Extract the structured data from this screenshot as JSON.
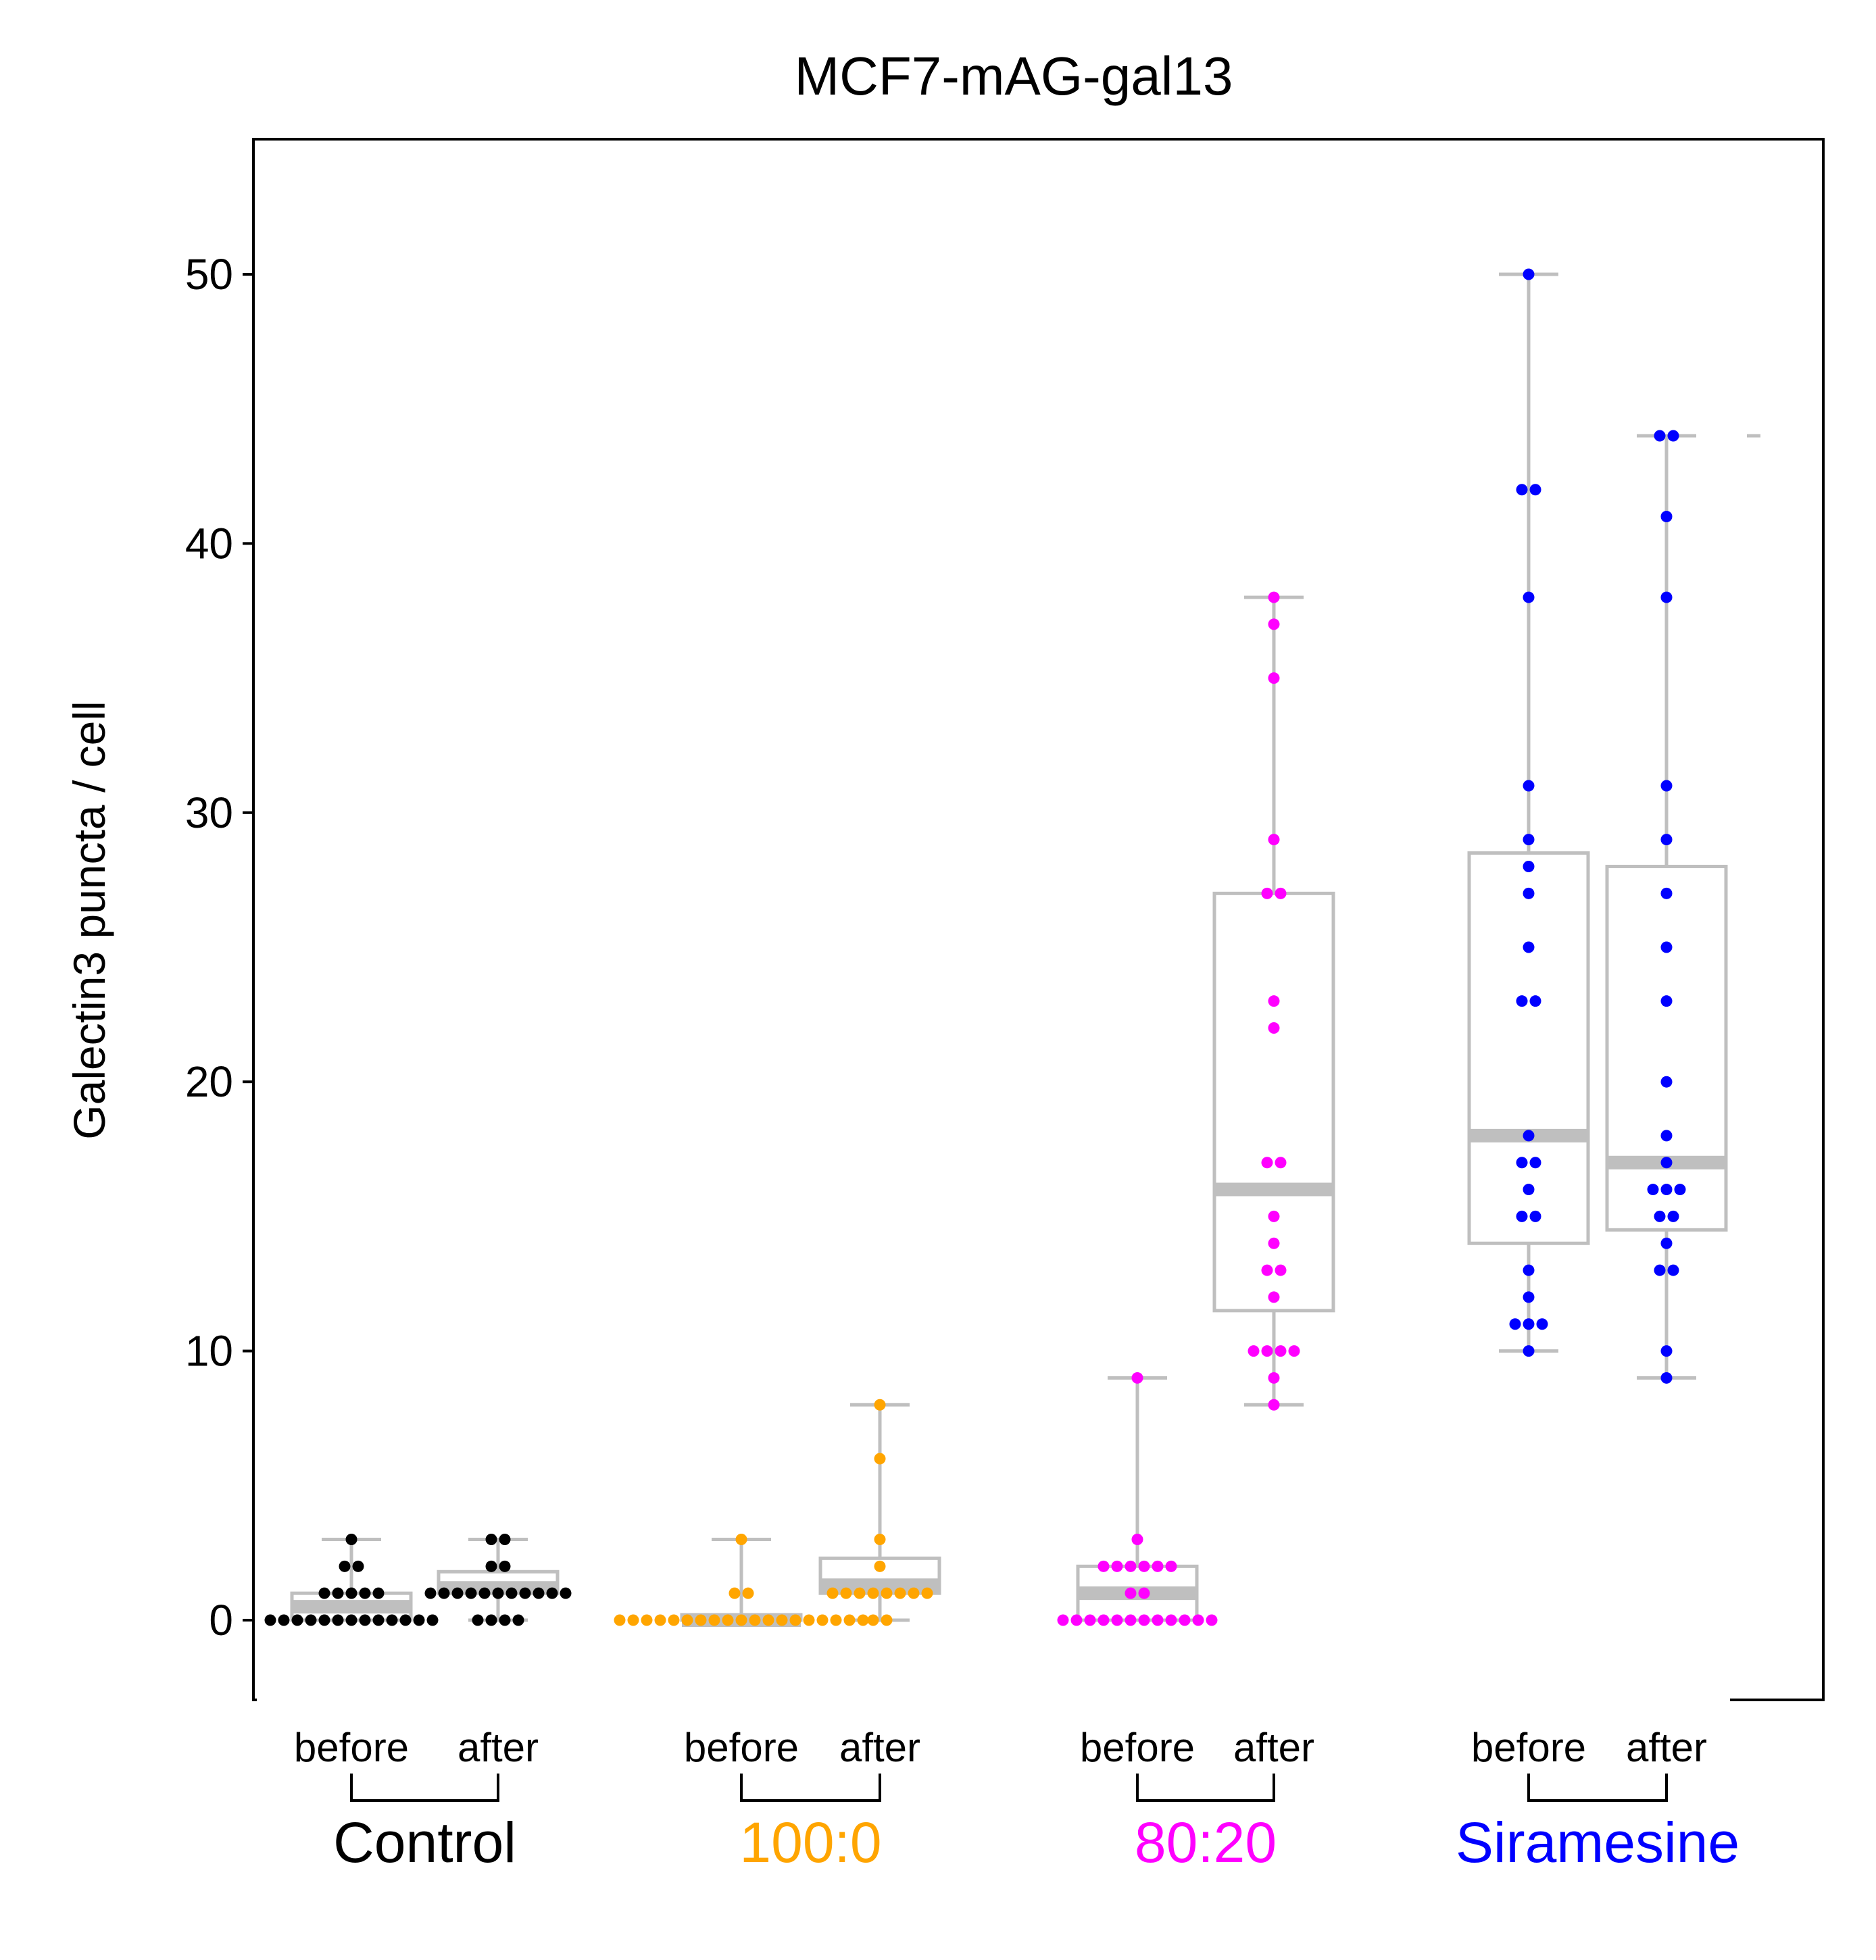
{
  "chart_data": {
    "type": "box-swarm",
    "title": "MCF7-mAG-gal13",
    "ylabel": "Galectin3 puncta / cell",
    "ylim": [
      -3,
      55
    ],
    "yticks": [
      0,
      10,
      20,
      30,
      40,
      50
    ],
    "grid": false,
    "subgroup_labels": [
      "before",
      "after"
    ],
    "groups": [
      {
        "name": "Control",
        "color": "#000000",
        "before": [
          0,
          0,
          0,
          0,
          0,
          0,
          0,
          0,
          0,
          0,
          0,
          0,
          0,
          1,
          1,
          1,
          1,
          1,
          2,
          2,
          3
        ],
        "after": [
          0,
          0,
          0,
          0,
          1,
          1,
          1,
          1,
          1,
          1,
          1,
          1,
          1,
          1,
          1,
          2,
          2,
          3,
          3
        ]
      },
      {
        "name": "100:0",
        "color": "#ffa500",
        "before": [
          0,
          0,
          0,
          0,
          0,
          0,
          0,
          0,
          0,
          0,
          0,
          0,
          0,
          0,
          0,
          0,
          0,
          0,
          0,
          1,
          1,
          3
        ],
        "after": [
          0,
          0,
          1,
          1,
          1,
          1,
          1,
          1,
          1,
          1,
          2,
          3,
          6,
          8
        ]
      },
      {
        "name": "80:20",
        "color": "#ff00ff",
        "before": [
          0,
          0,
          0,
          0,
          0,
          0,
          0,
          0,
          0,
          0,
          0,
          0,
          1,
          1,
          2,
          2,
          2,
          2,
          2,
          2,
          3,
          9
        ],
        "after": [
          8,
          9,
          10,
          10,
          10,
          10,
          12,
          13,
          13,
          14,
          15,
          17,
          17,
          22,
          23,
          27,
          27,
          29,
          35,
          37,
          38
        ]
      },
      {
        "name": "Siramesine",
        "color": "#0000ff",
        "before": [
          10,
          11,
          11,
          11,
          12,
          13,
          15,
          15,
          16,
          17,
          17,
          18,
          23,
          23,
          25,
          27,
          28,
          29,
          31,
          38,
          42,
          42,
          50
        ],
        "after": [
          9,
          10,
          13,
          13,
          14,
          15,
          15,
          16,
          16,
          16,
          17,
          18,
          20,
          23,
          25,
          27,
          29,
          31,
          38,
          41,
          44,
          44
        ]
      }
    ],
    "boxes": [
      {
        "q1": 0,
        "median": 0.5,
        "q3": 1,
        "whislo": 0,
        "whishi": 3
      },
      {
        "q1": 1,
        "median": 1.2,
        "q3": 1.8,
        "whislo": 0,
        "whishi": 3
      },
      {
        "q1": 0,
        "median": 0,
        "q3": 0.2,
        "whislo": 0,
        "whishi": 3
      },
      {
        "q1": 1,
        "median": 1.3,
        "q3": 2.3,
        "whislo": 0,
        "whishi": 8
      },
      {
        "q1": 0,
        "median": 1,
        "q3": 2,
        "whislo": 0,
        "whishi": 9
      },
      {
        "q1": 11.5,
        "median": 16,
        "q3": 27,
        "whislo": 8,
        "whishi": 38
      },
      {
        "q1": 14,
        "median": 18,
        "q3": 28.5,
        "whislo": 10,
        "whishi": 50
      },
      {
        "q1": 14.5,
        "median": 17,
        "q3": 28,
        "whislo": 9,
        "whishi": 44
      }
    ],
    "stray_marks": [
      44
    ]
  }
}
